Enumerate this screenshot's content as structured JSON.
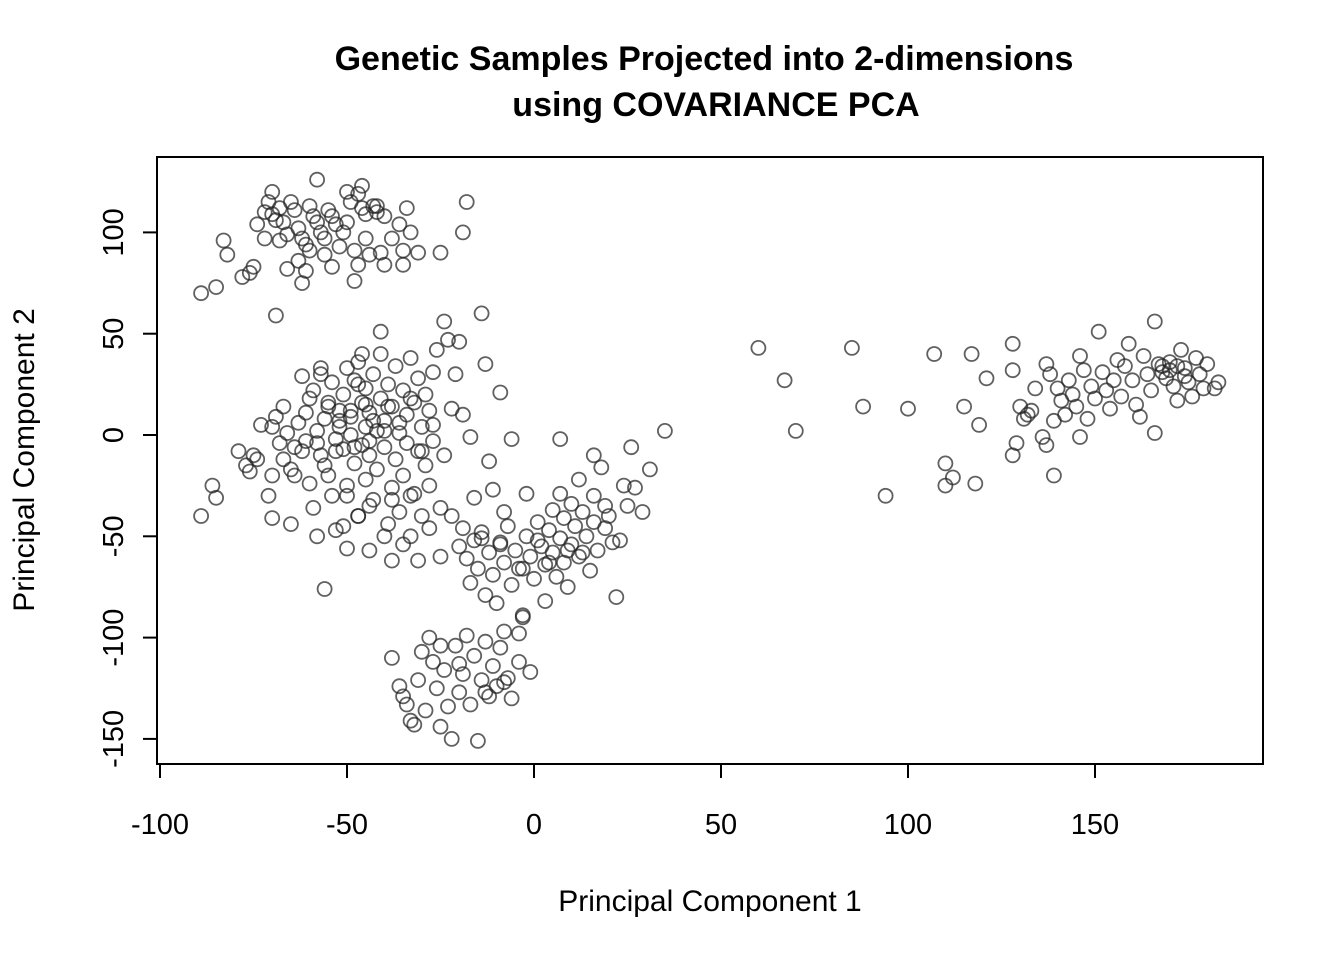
{
  "chart_data": {
    "type": "scatter",
    "title": "Genetic Samples Projected into 2-dimensions",
    "subtitle": "using COVARIANCE PCA",
    "xlabel": "Principal Component 1",
    "ylabel": "Principal Component 2",
    "xlim": [
      -102,
      193
    ],
    "ylim": [
      -162,
      137
    ],
    "x_ticks": [
      -100,
      -50,
      0,
      50,
      100,
      150
    ],
    "y_ticks": [
      -150,
      -100,
      -50,
      0,
      50,
      100
    ],
    "x_tick_labels": [
      "-100",
      "-50",
      "0",
      "50",
      "100",
      "150"
    ],
    "y_tick_labels": [
      "-150",
      "-100",
      "-50",
      "0",
      "50",
      "100"
    ],
    "grid": false,
    "marker": "open-circle",
    "marker_color": "#222222",
    "points": [
      [
        -89,
        70
      ],
      [
        -85,
        73
      ],
      [
        -82,
        89
      ],
      [
        -83,
        96
      ],
      [
        -78,
        78
      ],
      [
        -76,
        80
      ],
      [
        -75,
        83
      ],
      [
        -74,
        104
      ],
      [
        -72,
        97
      ],
      [
        -71,
        115
      ],
      [
        -70,
        109
      ],
      [
        -70,
        120
      ],
      [
        -69,
        106
      ],
      [
        -68,
        112
      ],
      [
        -67,
        105
      ],
      [
        -66,
        99
      ],
      [
        -65,
        115
      ],
      [
        -64,
        111
      ],
      [
        -63,
        102
      ],
      [
        -62,
        97
      ],
      [
        -61,
        94
      ],
      [
        -60,
        91
      ],
      [
        -60,
        113
      ],
      [
        -59,
        108
      ],
      [
        -58,
        105
      ],
      [
        -57,
        100
      ],
      [
        -56,
        97
      ],
      [
        -56,
        89
      ],
      [
        -55,
        111
      ],
      [
        -54,
        108
      ],
      [
        -53,
        104
      ],
      [
        -52,
        93
      ],
      [
        -51,
        100
      ],
      [
        -50,
        105
      ],
      [
        -49,
        115
      ],
      [
        -48,
        91
      ],
      [
        -47,
        84
      ],
      [
        -47,
        119
      ],
      [
        -46,
        112
      ],
      [
        -45,
        109
      ],
      [
        -45,
        97
      ],
      [
        -44,
        89
      ],
      [
        -43,
        113
      ],
      [
        -42,
        110
      ],
      [
        -41,
        90
      ],
      [
        -40,
        84
      ],
      [
        -38,
        97
      ],
      [
        -36,
        104
      ],
      [
        -35,
        91
      ],
      [
        -35,
        84
      ],
      [
        -34,
        112
      ],
      [
        -33,
        100
      ],
      [
        -31,
        90
      ],
      [
        -69,
        59
      ],
      [
        -62,
        75
      ],
      [
        -72,
        110
      ],
      [
        -68,
        96
      ],
      [
        -58,
        126
      ],
      [
        -50,
        120
      ],
      [
        -46,
        123
      ],
      [
        -42,
        113
      ],
      [
        -40,
        108
      ],
      [
        -61,
        81
      ],
      [
        -54,
        83
      ],
      [
        -48,
        76
      ],
      [
        -25,
        90
      ],
      [
        -18,
        115
      ],
      [
        -19,
        100
      ],
      [
        -66,
        82
      ],
      [
        -63,
        86
      ],
      [
        -89,
        -40
      ],
      [
        -86,
        -25
      ],
      [
        -85,
        -31
      ],
      [
        -79,
        -8
      ],
      [
        -77,
        -15
      ],
      [
        -76,
        -18
      ],
      [
        -74,
        -12
      ],
      [
        -73,
        5
      ],
      [
        -71,
        -30
      ],
      [
        -70,
        -41
      ],
      [
        -70,
        4
      ],
      [
        -69,
        9
      ],
      [
        -68,
        -4
      ],
      [
        -67,
        14
      ],
      [
        -66,
        1
      ],
      [
        -65,
        -17
      ],
      [
        -65,
        -44
      ],
      [
        -64,
        -20
      ],
      [
        -63,
        6
      ],
      [
        -62,
        -8
      ],
      [
        -61,
        -3
      ],
      [
        -61,
        11
      ],
      [
        -60,
        -24
      ],
      [
        -60,
        18
      ],
      [
        -59,
        -36
      ],
      [
        -59,
        22
      ],
      [
        -58,
        2
      ],
      [
        -57,
        -10
      ],
      [
        -57,
        30
      ],
      [
        -56,
        -15
      ],
      [
        -56,
        8
      ],
      [
        -55,
        -20
      ],
      [
        -55,
        14
      ],
      [
        -54,
        -30
      ],
      [
        -54,
        26
      ],
      [
        -53,
        -2
      ],
      [
        -53,
        -47
      ],
      [
        -52,
        4
      ],
      [
        -52,
        12
      ],
      [
        -51,
        -7
      ],
      [
        -51,
        20
      ],
      [
        -50,
        -25
      ],
      [
        -50,
        33
      ],
      [
        -50,
        -56
      ],
      [
        -49,
        0
      ],
      [
        -49,
        9
      ],
      [
        -48,
        -14
      ],
      [
        -48,
        27
      ],
      [
        -47,
        36
      ],
      [
        -47,
        -40
      ],
      [
        -46,
        -5
      ],
      [
        -46,
        16
      ],
      [
        -45,
        4
      ],
      [
        -45,
        -22
      ],
      [
        -45,
        23
      ],
      [
        -44,
        -10
      ],
      [
        -44,
        11
      ],
      [
        -43,
        -32
      ],
      [
        -43,
        30
      ],
      [
        -42,
        2
      ],
      [
        -42,
        -17
      ],
      [
        -41,
        18
      ],
      [
        -41,
        40
      ],
      [
        -40,
        -6
      ],
      [
        -40,
        7
      ],
      [
        -39,
        -44
      ],
      [
        -39,
        25
      ],
      [
        -38,
        -26
      ],
      [
        -38,
        14
      ],
      [
        -37,
        -12
      ],
      [
        -37,
        34
      ],
      [
        -36,
        -38
      ],
      [
        -36,
        1
      ],
      [
        -35,
        -20
      ],
      [
        -35,
        22
      ],
      [
        -34,
        -4
      ],
      [
        -34,
        10
      ],
      [
        -33,
        -50
      ],
      [
        -33,
        38
      ],
      [
        -32,
        -29
      ],
      [
        -32,
        16
      ],
      [
        -31,
        -8
      ],
      [
        -31,
        28
      ],
      [
        -30,
        4
      ],
      [
        -30,
        -40
      ],
      [
        -29,
        -15
      ],
      [
        -29,
        20
      ],
      [
        -28,
        -25
      ],
      [
        -28,
        12
      ],
      [
        -27,
        31
      ],
      [
        -27,
        -3
      ],
      [
        -26,
        42
      ],
      [
        -25,
        -36
      ],
      [
        -24,
        56
      ],
      [
        -23,
        47
      ],
      [
        -22,
        13
      ],
      [
        -21,
        30
      ],
      [
        -20,
        46
      ],
      [
        -19,
        10
      ],
      [
        -17,
        -1
      ],
      [
        -14,
        60
      ],
      [
        -13,
        35
      ],
      [
        -12,
        -13
      ],
      [
        -11,
        -27
      ],
      [
        -9,
        21
      ],
      [
        -6,
        -2
      ],
      [
        -75,
        -10
      ],
      [
        -70,
        -20
      ],
      [
        -67,
        -12
      ],
      [
        -64,
        -6
      ],
      [
        -62,
        29
      ],
      [
        -58,
        -4
      ],
      [
        -53,
        -8
      ],
      [
        -48,
        -6
      ],
      [
        -44,
        -3
      ],
      [
        -40,
        2
      ],
      [
        -36,
        6
      ],
      [
        -41,
        51
      ],
      [
        -30,
        -8
      ],
      [
        -56,
        -76
      ],
      [
        -22,
        -40
      ],
      [
        -20,
        -55
      ],
      [
        -19,
        -46
      ],
      [
        -18,
        -61
      ],
      [
        -17,
        -73
      ],
      [
        -16,
        -52
      ],
      [
        -15,
        -66
      ],
      [
        -14,
        -48
      ],
      [
        -13,
        -79
      ],
      [
        -12,
        -58
      ],
      [
        -11,
        -69
      ],
      [
        -10,
        -83
      ],
      [
        -9,
        -53
      ],
      [
        -8,
        -63
      ],
      [
        -7,
        -45
      ],
      [
        -6,
        -74
      ],
      [
        -5,
        -57
      ],
      [
        -4,
        -66
      ],
      [
        -3,
        -89
      ],
      [
        -2,
        -50
      ],
      [
        -1,
        -60
      ],
      [
        0,
        -71
      ],
      [
        1,
        -43
      ],
      [
        2,
        -55
      ],
      [
        3,
        -64
      ],
      [
        3,
        -82
      ],
      [
        4,
        -47
      ],
      [
        5,
        -37
      ],
      [
        5,
        -58
      ],
      [
        6,
        -70
      ],
      [
        7,
        -29
      ],
      [
        7,
        -51
      ],
      [
        8,
        -41
      ],
      [
        8,
        -63
      ],
      [
        9,
        -75
      ],
      [
        10,
        -34
      ],
      [
        10,
        -54
      ],
      [
        11,
        -45
      ],
      [
        12,
        -22
      ],
      [
        12,
        -60
      ],
      [
        13,
        -38
      ],
      [
        14,
        -50
      ],
      [
        15,
        -67
      ],
      [
        16,
        -30
      ],
      [
        16,
        -43
      ],
      [
        17,
        -57
      ],
      [
        18,
        -16
      ],
      [
        19,
        -35
      ],
      [
        20,
        -40
      ],
      [
        21,
        -53
      ],
      [
        22,
        -80
      ],
      [
        24,
        -25
      ],
      [
        25,
        -35
      ],
      [
        27,
        -26
      ],
      [
        29,
        -38
      ],
      [
        31,
        -17
      ],
      [
        35,
        2
      ],
      [
        26,
        -6
      ],
      [
        16,
        -10
      ],
      [
        7,
        -2
      ],
      [
        -2,
        -29
      ],
      [
        -8,
        -38
      ],
      [
        -14,
        -51
      ],
      [
        -25,
        -60
      ],
      [
        -28,
        -46
      ],
      [
        -31,
        -62
      ],
      [
        -35,
        -54
      ],
      [
        -38,
        -62
      ],
      [
        -40,
        -50
      ],
      [
        -44,
        -57
      ],
      [
        -47,
        -40
      ],
      [
        -16,
        -31
      ],
      [
        -9,
        -54
      ],
      [
        -3,
        -66
      ],
      [
        1,
        -52
      ],
      [
        4,
        -63
      ],
      [
        9,
        -57
      ],
      [
        13,
        -58
      ],
      [
        19,
        -46
      ],
      [
        23,
        -52
      ],
      [
        -38,
        -110
      ],
      [
        -36,
        -124
      ],
      [
        -35,
        -129
      ],
      [
        -34,
        -133
      ],
      [
        -33,
        -141
      ],
      [
        -32,
        -143
      ],
      [
        -31,
        -121
      ],
      [
        -30,
        -107
      ],
      [
        -29,
        -136
      ],
      [
        -28,
        -100
      ],
      [
        -27,
        -112
      ],
      [
        -26,
        -125
      ],
      [
        -25,
        -144
      ],
      [
        -24,
        -116
      ],
      [
        -23,
        -134
      ],
      [
        -22,
        -150
      ],
      [
        -21,
        -104
      ],
      [
        -20,
        -127
      ],
      [
        -19,
        -118
      ],
      [
        -18,
        -99
      ],
      [
        -17,
        -133
      ],
      [
        -16,
        -109
      ],
      [
        -15,
        -151
      ],
      [
        -14,
        -121
      ],
      [
        -13,
        -102
      ],
      [
        -12,
        -129
      ],
      [
        -11,
        -114
      ],
      [
        -10,
        -124
      ],
      [
        -9,
        -105
      ],
      [
        -8,
        -97
      ],
      [
        -7,
        -120
      ],
      [
        -6,
        -130
      ],
      [
        -4,
        -112
      ],
      [
        -3,
        -90
      ],
      [
        -1,
        -117
      ],
      [
        -25,
        -104
      ],
      [
        -20,
        -113
      ],
      [
        -13,
        -127
      ],
      [
        -8,
        -122
      ],
      [
        -4,
        -98
      ],
      [
        60,
        43
      ],
      [
        67,
        27
      ],
      [
        70,
        2
      ],
      [
        85,
        43
      ],
      [
        88,
        14
      ],
      [
        94,
        -30
      ],
      [
        100,
        13
      ],
      [
        107,
        40
      ],
      [
        110,
        -14
      ],
      [
        110,
        -25
      ],
      [
        112,
        -21
      ],
      [
        115,
        14
      ],
      [
        117,
        40
      ],
      [
        118,
        -24
      ],
      [
        119,
        5
      ],
      [
        121,
        28
      ],
      [
        128,
        45
      ],
      [
        128,
        32
      ],
      [
        128,
        -10
      ],
      [
        129,
        -4
      ],
      [
        130,
        14
      ],
      [
        131,
        8
      ],
      [
        132,
        10
      ],
      [
        133,
        12
      ],
      [
        134,
        23
      ],
      [
        136,
        -1
      ],
      [
        137,
        -5
      ],
      [
        137,
        35
      ],
      [
        138,
        30
      ],
      [
        139,
        7
      ],
      [
        139,
        -20
      ],
      [
        140,
        23
      ],
      [
        141,
        17
      ],
      [
        142,
        10
      ],
      [
        143,
        27
      ],
      [
        144,
        20
      ],
      [
        145,
        14
      ],
      [
        146,
        -1
      ],
      [
        146,
        39
      ],
      [
        147,
        32
      ],
      [
        148,
        8
      ],
      [
        149,
        24
      ],
      [
        150,
        18
      ],
      [
        151,
        51
      ],
      [
        152,
        31
      ],
      [
        153,
        22
      ],
      [
        154,
        13
      ],
      [
        155,
        27
      ],
      [
        156,
        37
      ],
      [
        157,
        19
      ],
      [
        158,
        34
      ],
      [
        159,
        45
      ],
      [
        160,
        27
      ],
      [
        161,
        15
      ],
      [
        162,
        9
      ],
      [
        163,
        39
      ],
      [
        164,
        30
      ],
      [
        165,
        22
      ],
      [
        166,
        56
      ],
      [
        166,
        1
      ],
      [
        167,
        35
      ],
      [
        168,
        31
      ],
      [
        169,
        28
      ],
      [
        170,
        36
      ],
      [
        171,
        24
      ],
      [
        172,
        17
      ],
      [
        173,
        42
      ],
      [
        174,
        33
      ],
      [
        175,
        26
      ],
      [
        176,
        19
      ],
      [
        177,
        38
      ],
      [
        178,
        30
      ],
      [
        179,
        23
      ],
      [
        180,
        35
      ],
      [
        182,
        23
      ],
      [
        183,
        26
      ],
      [
        168,
        34
      ],
      [
        170,
        32
      ],
      [
        172,
        34
      ],
      [
        174,
        29
      ],
      [
        -49,
        12
      ],
      [
        -47,
        25
      ],
      [
        -45,
        15
      ],
      [
        -43,
        7
      ],
      [
        -39,
        14
      ],
      [
        -33,
        18
      ],
      [
        -27,
        5
      ],
      [
        -24,
        -10
      ],
      [
        -52,
        7
      ],
      [
        -55,
        16
      ],
      [
        -46,
        40
      ],
      [
        -57,
        33
      ],
      [
        -50,
        -30
      ],
      [
        -44,
        -35
      ],
      [
        -58,
        -50
      ],
      [
        -51,
        -45
      ],
      [
        -38,
        -32
      ],
      [
        -33,
        -30
      ]
    ]
  }
}
